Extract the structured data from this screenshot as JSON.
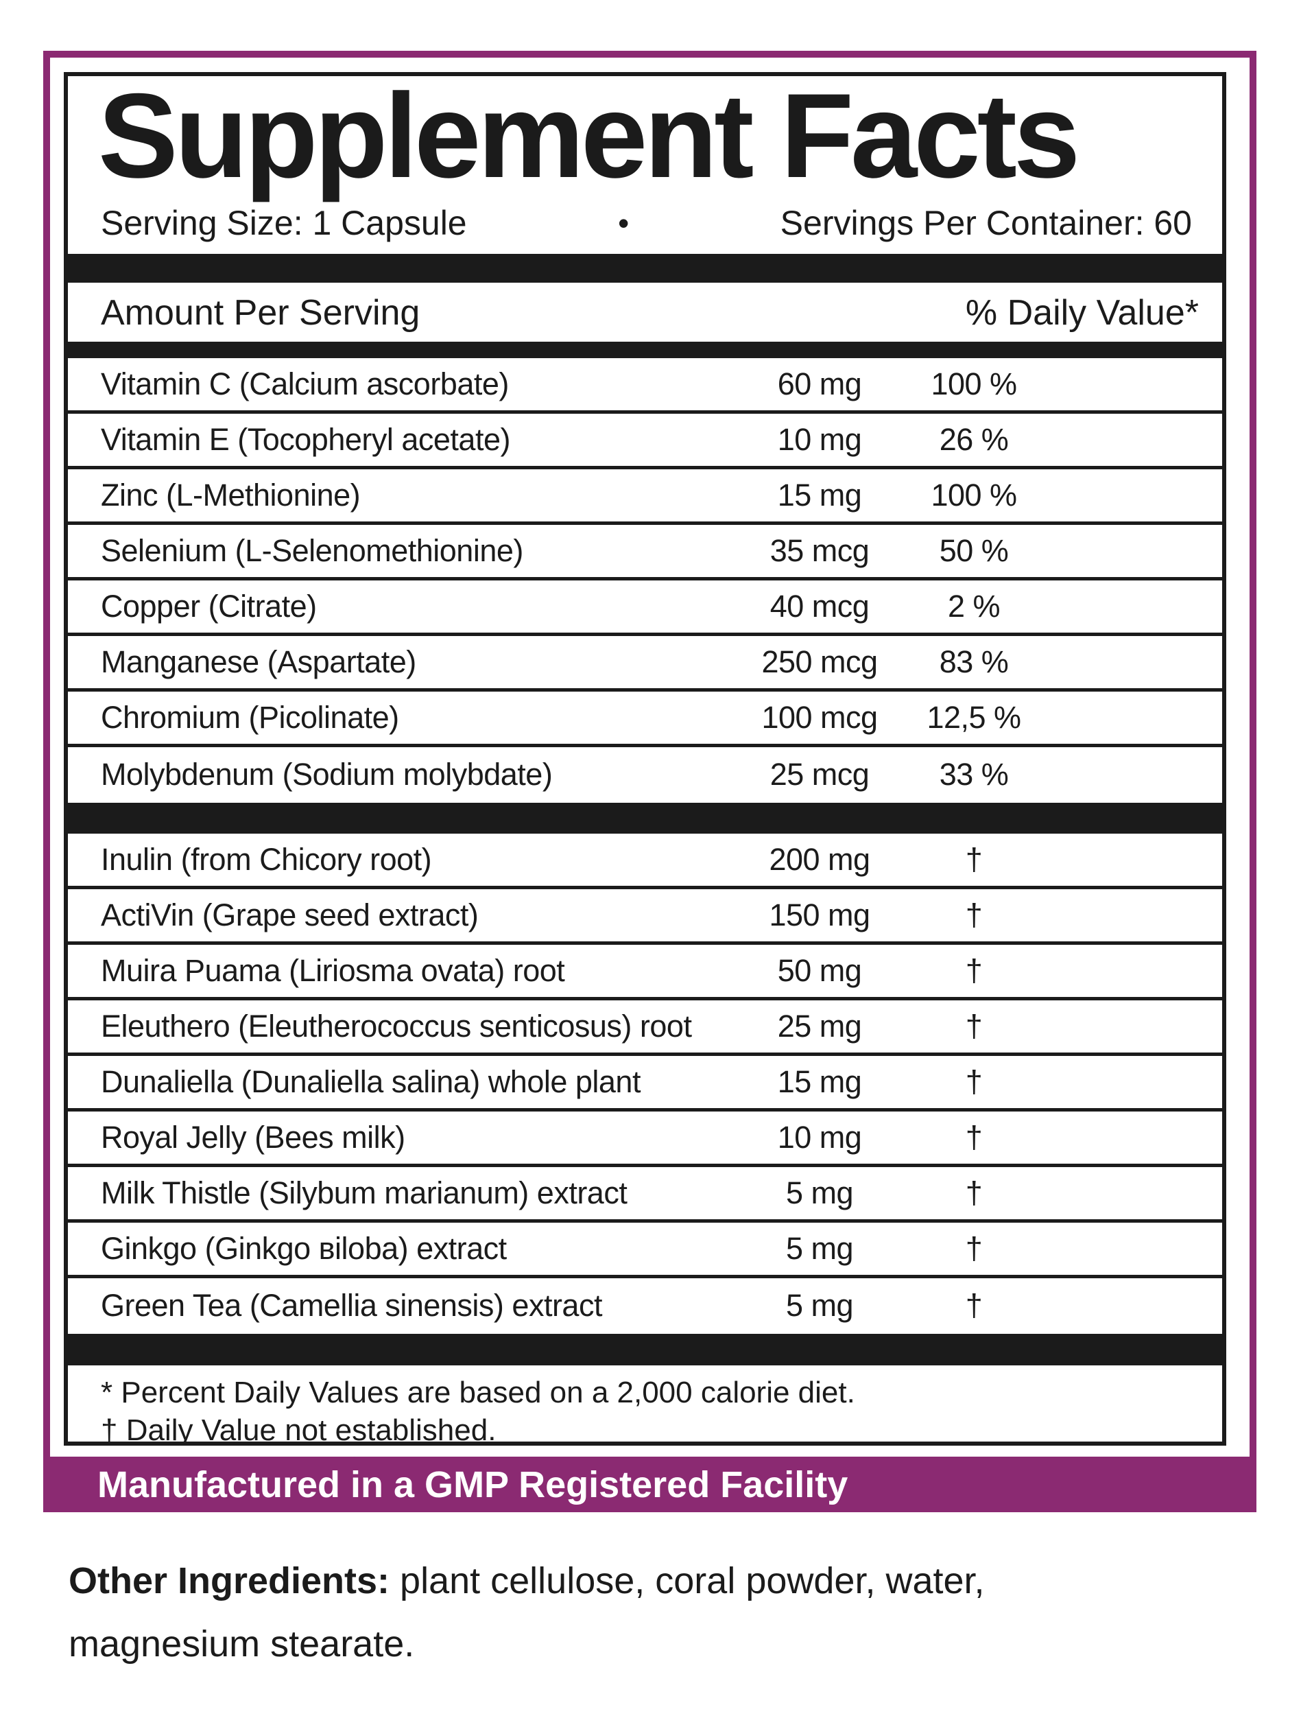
{
  "label": {
    "title": "Supplement Facts",
    "serving_size": "Serving Size: 1 Capsule",
    "separator_dot": "•",
    "servings_per_container": "Servings Per Container: 60",
    "columns": {
      "amount_header": "Amount Per Serving",
      "daily_value_header": "% Daily Value*"
    },
    "section1": [
      {
        "name": "Vitamin C (Calcium ascorbate)",
        "amount": "60 mg",
        "dv": "100 %"
      },
      {
        "name": "Vitamin E (Tocopheryl acetate)",
        "amount": "10 mg",
        "dv": "26 %"
      },
      {
        "name": "Zinc (L-Methionine)",
        "amount": "15 mg",
        "dv": "100 %"
      },
      {
        "name": "Selenium (L-Selenomethionine)",
        "amount": "35 mcg",
        "dv": "50 %"
      },
      {
        "name": "Copper (Citrate)",
        "amount": "40 mcg",
        "dv": "2 %"
      },
      {
        "name": "Manganese (Aspartate)",
        "amount": "250 mcg",
        "dv": "83 %"
      },
      {
        "name": "Chromium (Picolinate)",
        "amount": "100 mcg",
        "dv": "12,5 %"
      },
      {
        "name": "Molybdenum (Sodium molybdate)",
        "amount": "25 mcg",
        "dv": "33 %"
      }
    ],
    "section2": [
      {
        "name": "Inulin (from Chicory root)",
        "amount": "200 mg",
        "dv": "†"
      },
      {
        "name": "ActiVin (Grape seed extract)",
        "amount": "150 mg",
        "dv": "†"
      },
      {
        "name": "Muira Puama (Liriosma ovata) root",
        "amount": "50 mg",
        "dv": "†"
      },
      {
        "name": "Eleuthero (Eleutherococcus senticosus) root",
        "amount": "25 mg",
        "dv": "†"
      },
      {
        "name": "Dunaliella (Dunaliella salina) whole plant",
        "amount": "15 mg",
        "dv": "†"
      },
      {
        "name": "Royal Jelly (Bees milk)",
        "amount": "10 mg",
        "dv": "†"
      },
      {
        "name": "Milk Thistle (Silybum marianum) extract",
        "amount": "5 mg",
        "dv": "†"
      },
      {
        "name": "Ginkgo (Ginkgo вiloba) extract",
        "amount": "5 mg",
        "dv": "†"
      },
      {
        "name": "Green Tea (Camellia sinensis) extract",
        "amount": "5 mg",
        "dv": "†"
      }
    ],
    "footnotes": [
      "* Percent Daily Values are based on a 2,000 calorie diet.",
      "† Daily Value not established."
    ],
    "banner": "Manufactured in a GMP Registered Facility",
    "other_ingredients_label": "Other Ingredients:",
    "other_ingredients_text": " plant cellulose, coral powder, water, magnesium stearate.",
    "colors": {
      "accent_purple": "#8b2a72",
      "text_black": "#1b1b1b"
    }
  }
}
